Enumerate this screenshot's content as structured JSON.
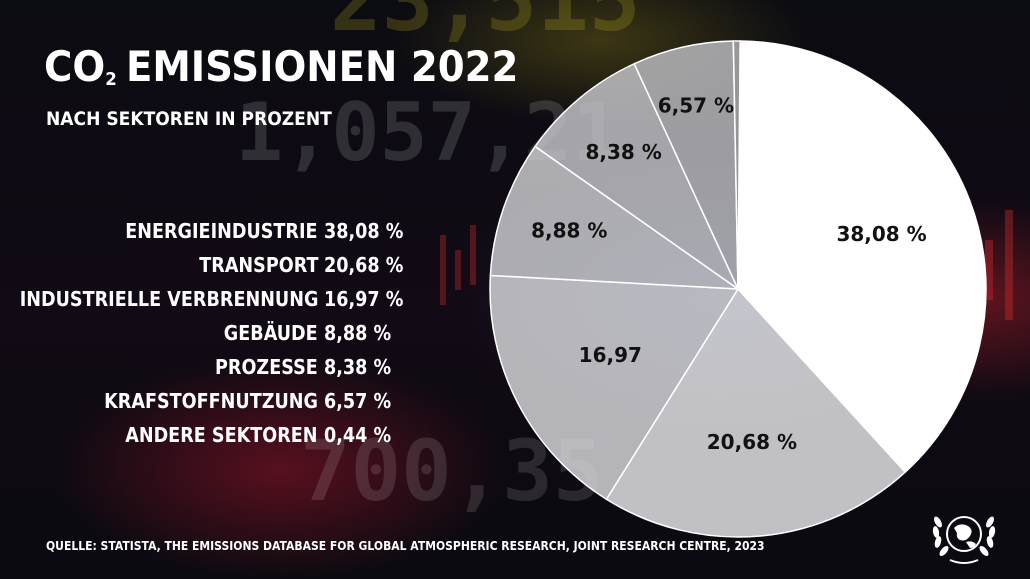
{
  "header": {
    "title_main": "CO",
    "title_sub": "2",
    "title_rest": "EMISSIONEN 2022",
    "subtitle": "NACH SEKTOREN IN PROZENT"
  },
  "legend": [
    {
      "label": "ENERGIEINDUSTRIE",
      "value": "38,08 %"
    },
    {
      "label": "TRANSPORT",
      "value": "20,68 %"
    },
    {
      "label": "INDUSTRIELLE VERBRENNUNG",
      "value": "16,97 %"
    },
    {
      "label": "GEBÄUDE",
      "value": "8,88 %"
    },
    {
      "label": "PROZESSE",
      "value": "8,38 %"
    },
    {
      "label": "KRAFSTOFFNUTZUNG",
      "value": "6,57 %"
    },
    {
      "label": "ANDERE SEKTOREN",
      "value": "0,44 %"
    }
  ],
  "source": "QUELLE: STATISTA, THE EMISSIONS DATABASE FOR GLOBAL ATMOSPHERIC RESEARCH, JOINT RESEARCH CENTRE, 2023",
  "chart_data": {
    "type": "pie",
    "title": "CO2 EMISSIONEN 2022",
    "subtitle": "NACH SEKTOREN IN PROZENT",
    "categories": [
      "ENERGIEINDUSTRIE",
      "TRANSPORT",
      "INDUSTRIELLE VERBRENNUNG",
      "GEBÄUDE",
      "PROZESSE",
      "KRAFSTOFFNUTZUNG",
      "ANDERE SEKTOREN"
    ],
    "values": [
      38.08,
      20.68,
      16.97,
      8.88,
      8.38,
      6.57,
      0.44
    ],
    "slice_labels": [
      "38,08 %",
      "20,68 %",
      "16,97",
      "8,88 %",
      "8,38 %",
      "6,57 %",
      ""
    ],
    "slice_colors": [
      "#ffffff",
      "#e9e9ec",
      "#dadade",
      "#cfcfd4",
      "#c7c7cc",
      "#bdbdc2",
      "#b3b3b8"
    ]
  }
}
